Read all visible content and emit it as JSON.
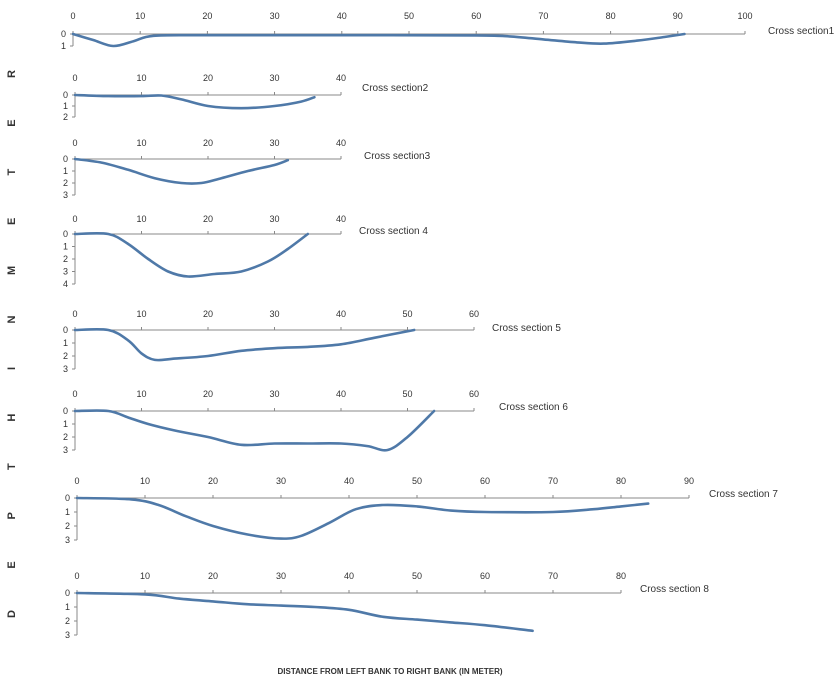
{
  "chart_data": {
    "type": "line",
    "ylabel_letters": [
      "R",
      "E",
      "T",
      "E",
      "M",
      "N",
      "I",
      "H",
      "T",
      "P",
      "E",
      "D"
    ],
    "xlabel": "DISTANCE FROM LEFT BANK TO RIGHT BANK (IN METER)",
    "panels": [
      {
        "label": "Cross section1",
        "xticks": [
          0,
          10,
          20,
          30,
          40,
          50,
          60,
          70,
          80,
          90,
          100
        ],
        "yticks": [
          0,
          1
        ],
        "points": [
          [
            0,
            0
          ],
          [
            3,
            0.5
          ],
          [
            6,
            1.0
          ],
          [
            9,
            0.6
          ],
          [
            12,
            0.15
          ],
          [
            20,
            0.1
          ],
          [
            40,
            0.1
          ],
          [
            60,
            0.12
          ],
          [
            65,
            0.2
          ],
          [
            70,
            0.45
          ],
          [
            75,
            0.7
          ],
          [
            79,
            0.8
          ],
          [
            84,
            0.55
          ],
          [
            88,
            0.25
          ],
          [
            91,
            0
          ]
        ]
      },
      {
        "label": "Cross section2",
        "xticks": [
          0,
          10,
          20,
          30,
          40
        ],
        "yticks": [
          0,
          1,
          2
        ],
        "points": [
          [
            0,
            0
          ],
          [
            5,
            0.1
          ],
          [
            10,
            0.1
          ],
          [
            13,
            0.05
          ],
          [
            16,
            0.4
          ],
          [
            20,
            1.0
          ],
          [
            25,
            1.2
          ],
          [
            30,
            1.0
          ],
          [
            34,
            0.6
          ],
          [
            36,
            0.2
          ]
        ]
      },
      {
        "label": "Cross section3",
        "xticks": [
          0,
          10,
          20,
          30,
          40
        ],
        "yticks": [
          0,
          1,
          2,
          3
        ],
        "points": [
          [
            0,
            0
          ],
          [
            4,
            0.3
          ],
          [
            8,
            0.9
          ],
          [
            12,
            1.6
          ],
          [
            16,
            2.0
          ],
          [
            19,
            2.0
          ],
          [
            22,
            1.6
          ],
          [
            26,
            1.0
          ],
          [
            30,
            0.5
          ],
          [
            32,
            0.1
          ]
        ]
      },
      {
        "label": "Cross section 4",
        "xticks": [
          0,
          10,
          20,
          30,
          40
        ],
        "yticks": [
          0,
          1,
          2,
          3,
          4
        ],
        "points": [
          [
            0,
            0
          ],
          [
            5,
            0
          ],
          [
            8,
            0.8
          ],
          [
            11,
            2.0
          ],
          [
            14,
            3.0
          ],
          [
            17,
            3.4
          ],
          [
            21,
            3.2
          ],
          [
            25,
            3.0
          ],
          [
            29,
            2.2
          ],
          [
            32,
            1.2
          ],
          [
            35,
            0
          ]
        ]
      },
      {
        "label": "Cross section 5",
        "xticks": [
          0,
          10,
          20,
          30,
          40,
          50,
          60
        ],
        "yticks": [
          0,
          1,
          2,
          3
        ],
        "points": [
          [
            0,
            0
          ],
          [
            5,
            0
          ],
          [
            8,
            0.8
          ],
          [
            10,
            1.8
          ],
          [
            12,
            2.3
          ],
          [
            15,
            2.2
          ],
          [
            20,
            2.0
          ],
          [
            25,
            1.6
          ],
          [
            30,
            1.4
          ],
          [
            35,
            1.3
          ],
          [
            40,
            1.1
          ],
          [
            45,
            0.6
          ],
          [
            51,
            0
          ]
        ]
      },
      {
        "label": "Cross section 6",
        "xticks": [
          0,
          10,
          20,
          30,
          40,
          50,
          60
        ],
        "yticks": [
          0,
          1,
          2,
          3
        ],
        "points": [
          [
            0,
            0
          ],
          [
            5,
            0
          ],
          [
            8,
            0.5
          ],
          [
            11,
            1.0
          ],
          [
            15,
            1.5
          ],
          [
            20,
            2.0
          ],
          [
            25,
            2.6
          ],
          [
            30,
            2.5
          ],
          [
            35,
            2.5
          ],
          [
            40,
            2.5
          ],
          [
            44,
            2.7
          ],
          [
            47,
            3.0
          ],
          [
            50,
            2.0
          ],
          [
            54,
            0
          ]
        ]
      },
      {
        "label": "Cross section 7",
        "xticks": [
          0,
          10,
          20,
          30,
          40,
          50,
          60,
          70,
          80,
          90
        ],
        "yticks": [
          0,
          1,
          2,
          3
        ],
        "points": [
          [
            0,
            0
          ],
          [
            8,
            0.1
          ],
          [
            12,
            0.5
          ],
          [
            16,
            1.3
          ],
          [
            20,
            2.0
          ],
          [
            25,
            2.6
          ],
          [
            30,
            2.9
          ],
          [
            33,
            2.7
          ],
          [
            37,
            1.8
          ],
          [
            41,
            0.8
          ],
          [
            45,
            0.5
          ],
          [
            50,
            0.6
          ],
          [
            55,
            0.9
          ],
          [
            60,
            1.0
          ],
          [
            70,
            1.0
          ],
          [
            76,
            0.8
          ],
          [
            80,
            0.6
          ],
          [
            84,
            0.4
          ]
        ]
      },
      {
        "label": "Cross section 8",
        "xticks": [
          0,
          10,
          20,
          30,
          40,
          50,
          60,
          70,
          80
        ],
        "yticks": [
          0,
          1,
          2,
          3
        ],
        "points": [
          [
            0,
            0
          ],
          [
            10,
            0.1
          ],
          [
            15,
            0.4
          ],
          [
            20,
            0.6
          ],
          [
            25,
            0.8
          ],
          [
            30,
            0.9
          ],
          [
            35,
            1.0
          ],
          [
            40,
            1.2
          ],
          [
            45,
            1.7
          ],
          [
            50,
            1.9
          ],
          [
            55,
            2.1
          ],
          [
            60,
            2.3
          ],
          [
            67,
            2.7
          ]
        ]
      }
    ]
  }
}
